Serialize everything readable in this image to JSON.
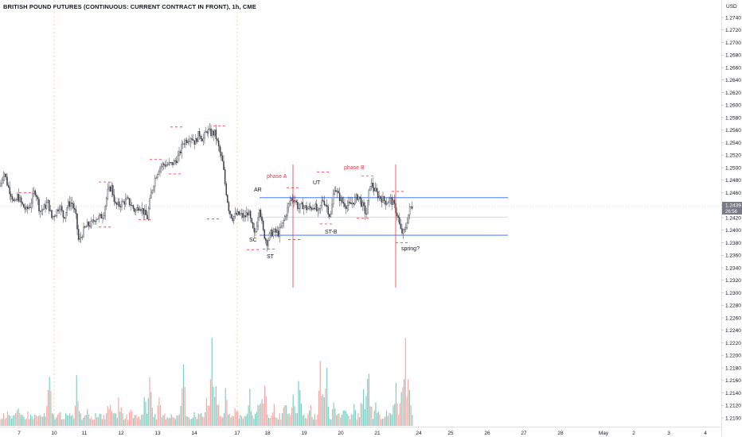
{
  "chart_data": {
    "type": "candlestick",
    "title": "BRITISH POUND FUTURES (CONTINUOUS: CURRENT CONTRACT IN FRONT), 1h, CME",
    "price_axis_unit": "USD",
    "price_ticks": [
      "1.2740",
      "1.2720",
      "1.2700",
      "1.2680",
      "1.2660",
      "1.2640",
      "1.2620",
      "1.2600",
      "1.2580",
      "1.2560",
      "1.2540",
      "1.2520",
      "1.2500",
      "1.2480",
      "1.2460",
      "1.2440",
      "1.2420",
      "1.2400",
      "1.2380",
      "1.2360",
      "1.2340",
      "1.2320",
      "1.2300",
      "1.2280",
      "1.2260",
      "1.2240",
      "1.2220",
      "1.2200",
      "1.2180",
      "1.2160",
      "1.2140",
      "1.2120",
      "1.2100"
    ],
    "ylim": [
      1.2095,
      1.2755
    ],
    "date_ticks": [
      "7",
      "10",
      "11",
      "12",
      "13",
      "14",
      "17",
      "18",
      "19",
      "20",
      "21",
      "24",
      "25",
      "26",
      "27",
      "28",
      "May",
      "2",
      "3",
      "4"
    ],
    "last_price": "1.2439",
    "countdown": "26:56",
    "levels": {
      "resistance": 1.2452,
      "midline": 1.2421,
      "support": 1.2392,
      "current": 1.2439
    },
    "annotations": [
      {
        "text": "phase A",
        "color": "#f23645"
      },
      {
        "text": "phase B",
        "color": "#f23645"
      },
      {
        "text": "AR",
        "color": "#131722"
      },
      {
        "text": "UT",
        "color": "#131722"
      },
      {
        "text": "SC",
        "color": "#131722"
      },
      {
        "text": "ST",
        "color": "#131722"
      },
      {
        "text": "ST-B",
        "color": "#131722"
      },
      {
        "text": "spring?",
        "color": "#131722"
      }
    ],
    "price_path": [
      [
        0,
        1.247
      ],
      [
        5,
        1.2495
      ],
      [
        10,
        1.247
      ],
      [
        15,
        1.2455
      ],
      [
        18,
        1.244
      ],
      [
        22,
        1.2455
      ],
      [
        28,
        1.244
      ],
      [
        33,
        1.2432
      ],
      [
        38,
        1.244
      ],
      [
        43,
        1.2462
      ],
      [
        45,
        1.2462
      ],
      [
        50,
        1.243
      ],
      [
        55,
        1.2435
      ],
      [
        60,
        1.2445
      ],
      [
        65,
        1.242
      ],
      [
        70,
        1.2428
      ],
      [
        75,
        1.244
      ],
      [
        80,
        1.242
      ],
      [
        85,
        1.244
      ],
      [
        90,
        1.2445
      ],
      [
        95,
        1.2425
      ],
      [
        99,
        1.238
      ],
      [
        105,
        1.24
      ],
      [
        110,
        1.2408
      ],
      [
        115,
        1.241
      ],
      [
        120,
        1.242
      ],
      [
        125,
        1.242
      ],
      [
        130,
        1.2425
      ],
      [
        135,
        1.246
      ],
      [
        140,
        1.247
      ],
      [
        145,
        1.244
      ],
      [
        150,
        1.244
      ],
      [
        155,
        1.2445
      ],
      [
        160,
        1.2448
      ],
      [
        165,
        1.244
      ],
      [
        170,
        1.243
      ],
      [
        175,
        1.244
      ],
      [
        180,
        1.243
      ],
      [
        185,
        1.242
      ],
      [
        190,
        1.246
      ],
      [
        195,
        1.2485
      ],
      [
        200,
        1.25
      ],
      [
        205,
        1.2505
      ],
      [
        210,
        1.2505
      ],
      [
        215,
        1.2505
      ],
      [
        220,
        1.251
      ],
      [
        225,
        1.252
      ],
      [
        230,
        1.254
      ],
      [
        235,
        1.2545
      ],
      [
        240,
        1.255
      ],
      [
        245,
        1.254
      ],
      [
        250,
        1.2555
      ],
      [
        255,
        1.2545
      ],
      [
        260,
        1.256
      ],
      [
        265,
        1.2555
      ],
      [
        270,
        1.2555
      ],
      [
        275,
        1.253
      ],
      [
        280,
        1.2505
      ],
      [
        283,
        1.247
      ],
      [
        288,
        1.243
      ],
      [
        292,
        1.242
      ],
      [
        297,
        1.2425
      ],
      [
        302,
        1.2425
      ],
      [
        307,
        1.242
      ],
      [
        312,
        1.243
      ],
      [
        316,
        1.2408
      ],
      [
        320,
        1.239
      ],
      [
        326,
        1.244
      ],
      [
        330,
        1.24
      ],
      [
        335,
        1.238
      ],
      [
        340,
        1.2395
      ],
      [
        345,
        1.2397
      ],
      [
        350,
        1.2395
      ],
      [
        355,
        1.241
      ],
      [
        360,
        1.243
      ],
      [
        365,
        1.245
      ],
      [
        370,
        1.245
      ],
      [
        375,
        1.2435
      ],
      [
        380,
        1.244
      ],
      [
        385,
        1.2435
      ],
      [
        390,
        1.2435
      ],
      [
        395,
        1.244
      ],
      [
        400,
        1.2425
      ],
      [
        405,
        1.245
      ],
      [
        410,
        1.244
      ],
      [
        415,
        1.242
      ],
      [
        420,
        1.247
      ],
      [
        425,
        1.2455
      ],
      [
        430,
        1.2445
      ],
      [
        435,
        1.244
      ],
      [
        440,
        1.244
      ],
      [
        445,
        1.2448
      ],
      [
        450,
        1.2455
      ],
      [
        455,
        1.244
      ],
      [
        460,
        1.2425
      ],
      [
        465,
        1.2475
      ],
      [
        468,
        1.247
      ],
      [
        470,
        1.2465
      ],
      [
        475,
        1.2455
      ],
      [
        480,
        1.245
      ],
      [
        485,
        1.2445
      ],
      [
        490,
        1.245
      ],
      [
        495,
        1.244
      ],
      [
        500,
        1.242
      ],
      [
        503,
        1.24
      ],
      [
        506,
        1.2395
      ],
      [
        509,
        1.24
      ],
      [
        512,
        1.242
      ],
      [
        515,
        1.2435
      ],
      [
        518,
        1.2439
      ]
    ],
    "volume_peaks": [
      [
        0,
        0.12
      ],
      [
        10,
        0.2
      ],
      [
        22,
        0.15
      ],
      [
        35,
        0.1
      ],
      [
        48,
        0.08
      ],
      [
        62,
        0.45
      ],
      [
        75,
        0.12
      ],
      [
        85,
        0.1
      ],
      [
        97,
        0.58
      ],
      [
        110,
        0.22
      ],
      [
        125,
        0.15
      ],
      [
        138,
        0.42
      ],
      [
        150,
        0.3
      ],
      [
        165,
        0.18
      ],
      [
        182,
        0.28
      ],
      [
        189,
        0.78
      ],
      [
        200,
        0.22
      ],
      [
        215,
        0.12
      ],
      [
        230,
        0.6
      ],
      [
        245,
        0.15
      ],
      [
        260,
        0.32
      ],
      [
        266,
        0.72
      ],
      [
        272,
        0.48
      ],
      [
        283,
        0.3
      ],
      [
        297,
        0.25
      ],
      [
        313,
        0.45
      ],
      [
        325,
        0.3
      ],
      [
        332,
        0.52
      ],
      [
        345,
        0.18
      ],
      [
        358,
        0.22
      ],
      [
        368,
        0.3
      ],
      [
        376,
        0.45
      ],
      [
        390,
        0.18
      ],
      [
        403,
        0.7
      ],
      [
        410,
        0.55
      ],
      [
        420,
        0.3
      ],
      [
        432,
        0.22
      ],
      [
        445,
        0.2
      ],
      [
        456,
        0.4
      ],
      [
        463,
        0.6
      ],
      [
        472,
        0.28
      ],
      [
        486,
        0.2
      ],
      [
        497,
        0.54
      ],
      [
        505,
        0.4
      ],
      [
        510,
        0.9
      ],
      [
        514,
        0.6
      ]
    ]
  }
}
